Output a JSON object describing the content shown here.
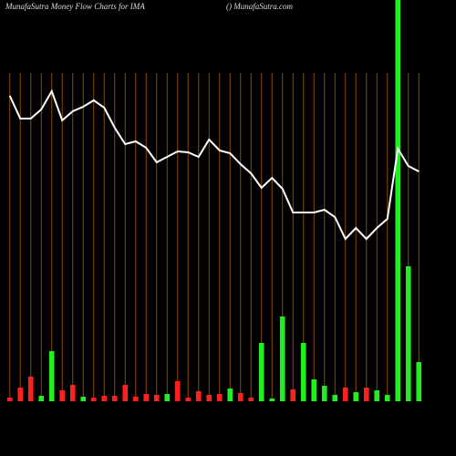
{
  "chart_data": {
    "type": "bar",
    "title": "MunafaSutra  Money Flow  Charts for IMA",
    "subtitle": "() MunafaSutra.com",
    "categories": [
      null,
      null,
      null,
      null,
      null,
      null,
      null,
      null,
      null,
      null,
      null,
      null,
      null,
      null,
      null,
      null,
      null,
      null,
      null,
      null,
      null,
      null,
      null,
      null,
      null,
      null,
      null,
      null,
      null,
      null,
      null,
      null,
      null,
      null,
      null,
      null,
      null,
      null,
      null,
      null
    ],
    "ylim": [
      0,
      500
    ],
    "y2lim": [
      0,
      440
    ],
    "grid": true,
    "grid_color": "#8a4a00",
    "series": [
      {
        "axis": "y2",
        "values": [
          4,
          15,
          27,
          6,
          55,
          12,
          18,
          5,
          4,
          6,
          6,
          18,
          5,
          8,
          7,
          8,
          22,
          4,
          11,
          7,
          8,
          14,
          9,
          4,
          64,
          3,
          93,
          13,
          64,
          24,
          17,
          7,
          15,
          10,
          15,
          12,
          7,
          440,
          148,
          43
        ],
        "colors": [
          "#ff2020",
          "#ff2020",
          "#ff2020",
          "#22ee22",
          "#22ee22",
          "#ff2020",
          "#ff2020",
          "#22ee22",
          "#ff2020",
          "#ff2020",
          "#ff2020",
          "#ff2020",
          "#ff2020",
          "#ff2020",
          "#ff2020",
          "#22ee22",
          "#ff2020",
          "#ff2020",
          "#ff2020",
          "#ff2020",
          "#ff2020",
          "#22ee22",
          "#ff2020",
          "#ff2020",
          "#22ee22",
          "#22ee22",
          "#22ee22",
          "#ff2020",
          "#22ee22",
          "#22ee22",
          "#22ee22",
          "#22ee22",
          "#ff2020",
          "#22ee22",
          "#ff2020",
          "#22ee22",
          "#22ee22",
          "#22ee22",
          "#22ee22",
          "#22ee22"
        ]
      },
      {
        "type": "line",
        "color": "#ffffff",
        "values": [
          395,
          370,
          370,
          380,
          400,
          368,
          378,
          383,
          390,
          382,
          360,
          342,
          345,
          338,
          322,
          328,
          334,
          333,
          328,
          347,
          335,
          332,
          320,
          310,
          294,
          305,
          293,
          267,
          267,
          267,
          270,
          262,
          238,
          250,
          238,
          250,
          260,
          337,
          318,
          312
        ]
      }
    ]
  }
}
